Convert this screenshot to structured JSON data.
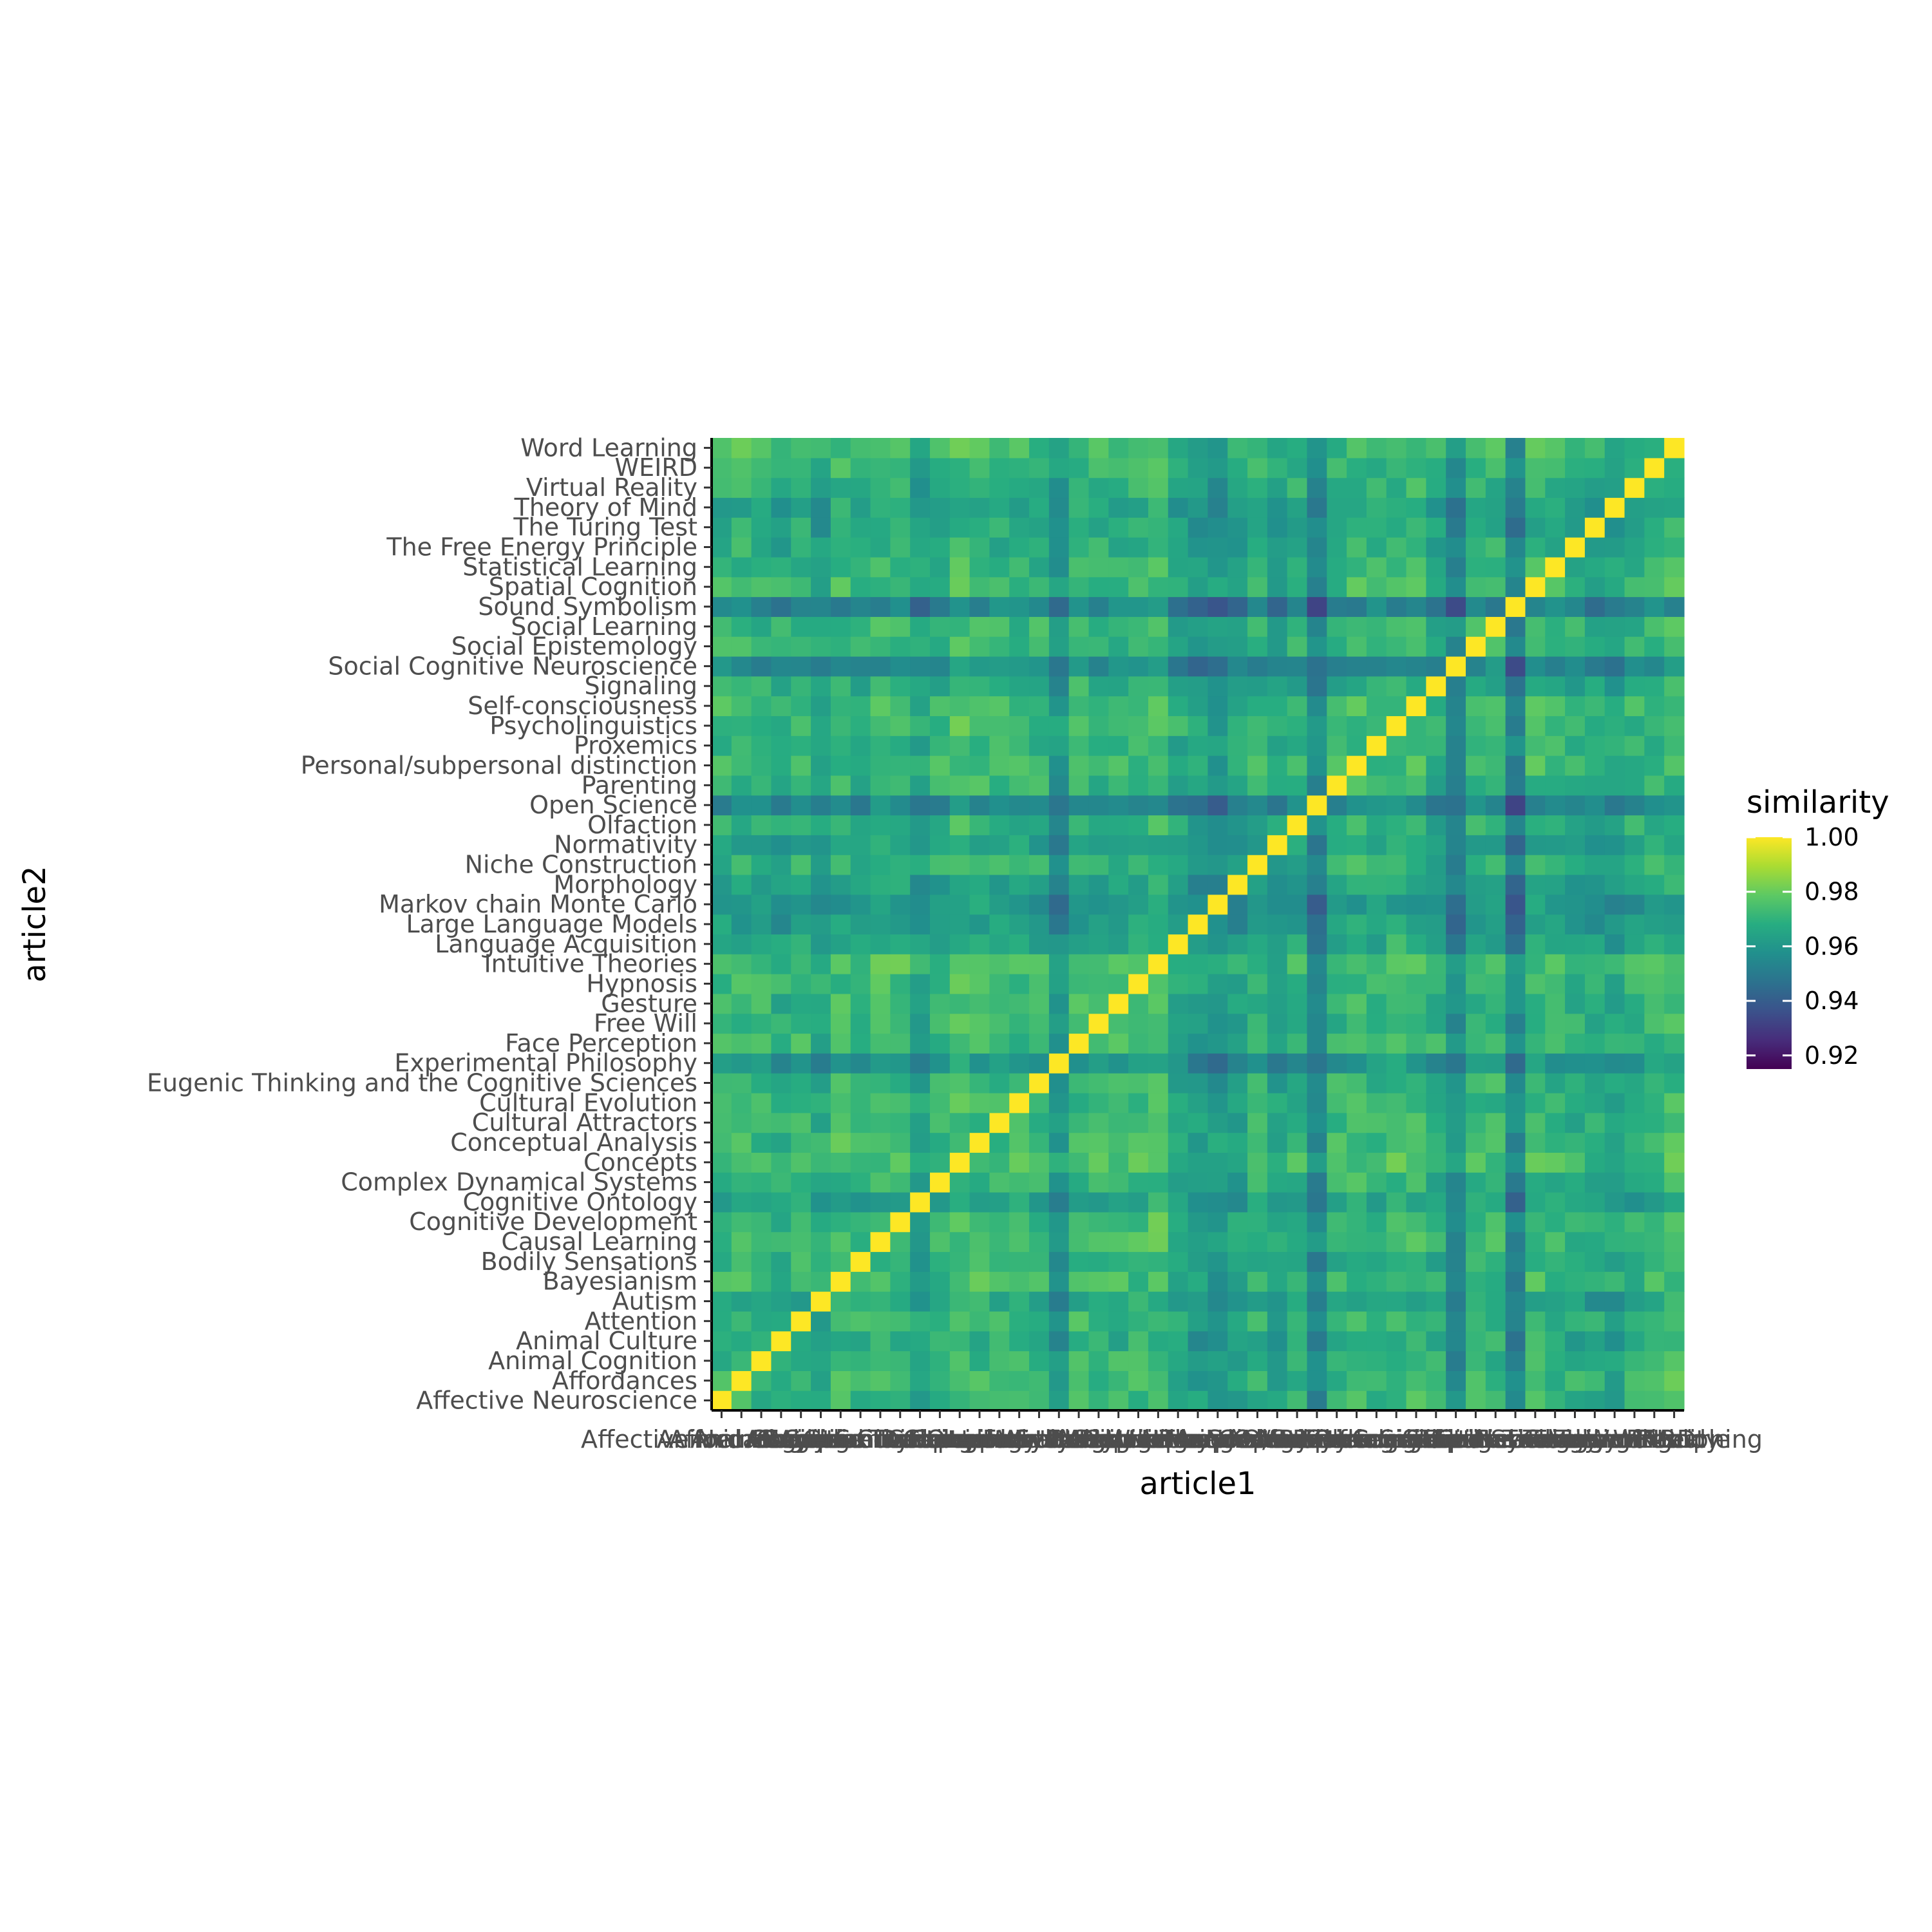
{
  "chart_data": {
    "type": "heatmap",
    "xlabel": "article1",
    "ylabel": "article2",
    "legend": {
      "title": "similarity",
      "placement": "right",
      "breaks": [
        1.0,
        0.98,
        0.96,
        0.94,
        0.92
      ],
      "break_labels": [
        "1.00",
        "0.98",
        "0.96",
        "0.94",
        "0.92"
      ],
      "range": [
        0.915,
        1.0
      ]
    },
    "colors": {
      "low": "#440154",
      "q1": "#3b528b",
      "mid": "#21908d",
      "q3": "#5dc963",
      "high": "#fde725"
    },
    "articles": [
      "Affective Neuroscience",
      "Affordances",
      "Animal Cognition",
      "Animal Culture",
      "Attention",
      "Autism",
      "Bayesianism",
      "Bodily Sensations",
      "Causal Learning",
      "Cognitive Development",
      "Cognitive Ontology",
      "Complex Dynamical Systems",
      "Concepts",
      "Conceptual Analysis",
      "Cultural Attractors",
      "Cultural Evolution",
      "Eugenic Thinking and the Cognitive Sciences",
      "Experimental Philosophy",
      "Face Perception",
      "Free Will",
      "Gesture",
      "Hypnosis",
      "Intuitive Theories",
      "Language Acquisition",
      "Large Language Models",
      "Markov chain Monte Carlo",
      "Morphology",
      "Niche Construction",
      "Normativity",
      "Olfaction",
      "Open Science",
      "Parenting",
      "Personal/subpersonal distinction",
      "Proxemics",
      "Psycholinguistics",
      "Self-consciousness",
      "Signaling",
      "Social Cognitive Neuroscience",
      "Social Epistemology",
      "Social Learning",
      "Sound Symbolism",
      "Spatial Cognition",
      "Statistical Learning",
      "The Free Energy Principle",
      "The Turing Test",
      "Theory of Mind",
      "Virtual Reality",
      "WEIRD",
      "Word Learning"
    ],
    "article_offset": [
      0.003,
      0.004,
      0.002,
      -0.001,
      0.003,
      -0.003,
      0.004,
      0.001,
      0.004,
      0.004,
      -0.004,
      0.002,
      0.006,
      0.005,
      0.003,
      0.003,
      0.002,
      -0.008,
      0.004,
      0.003,
      0.003,
      0.004,
      0.006,
      -0.002,
      -0.006,
      -0.008,
      -0.004,
      0.001,
      -0.004,
      0.001,
      -0.013,
      0.002,
      0.004,
      0.003,
      0.005,
      0.005,
      0.0,
      -0.012,
      0.002,
      0.003,
      -0.015,
      0.004,
      0.002,
      0.0,
      -0.002,
      -0.003,
      0.001,
      0.003,
      0.005
    ],
    "base": 0.966,
    "diagonal": 1.0
  }
}
